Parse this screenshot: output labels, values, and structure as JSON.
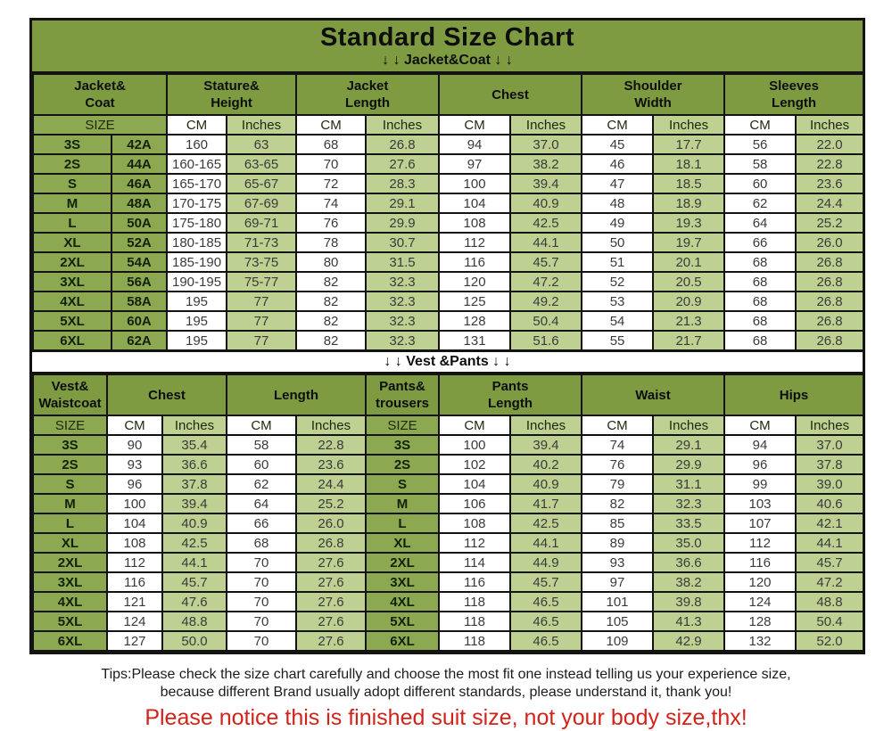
{
  "title": "Standard Size Chart",
  "colors": {
    "header_green": "#7e9b41",
    "size_cell_green": "#8ca851",
    "inches_cell_green": "#bfd192",
    "cm_cell_white": "#ffffff",
    "border_black": "#131313",
    "notice_red": "#d0241b"
  },
  "jacket": {
    "banner": "↓ ↓  Jacket&Coat ↓ ↓",
    "groups": [
      {
        "label": "Jacket&\nCoat",
        "span": 2
      },
      {
        "label": "Stature&\nHeight",
        "span": 2
      },
      {
        "label": "Jacket\nLength",
        "span": 2
      },
      {
        "label": "Chest",
        "span": 2
      },
      {
        "label": "Shoulder\nWidth",
        "span": 2
      },
      {
        "label": "Sleeves\nLength",
        "span": 2
      }
    ],
    "subheader": [
      {
        "label": "SIZE",
        "span": 2,
        "type": "size"
      },
      {
        "label": "CM",
        "span": 1,
        "type": "cm"
      },
      {
        "label": "Inches",
        "span": 1,
        "type": "in"
      },
      {
        "label": "CM",
        "span": 1,
        "type": "cm"
      },
      {
        "label": "Inches",
        "span": 1,
        "type": "in"
      },
      {
        "label": "CM",
        "span": 1,
        "type": "cm"
      },
      {
        "label": "Inches",
        "span": 1,
        "type": "in"
      },
      {
        "label": "CM",
        "span": 1,
        "type": "cm"
      },
      {
        "label": "Inches",
        "span": 1,
        "type": "in"
      },
      {
        "label": "CM",
        "span": 1,
        "type": "cm"
      },
      {
        "label": "Inches",
        "span": 1,
        "type": "in"
      }
    ],
    "col_types": [
      "size",
      "size",
      "cm",
      "in",
      "cm",
      "in",
      "cm",
      "in",
      "cm",
      "in",
      "cm",
      "in"
    ],
    "rows": [
      [
        "3S",
        "42A",
        "160",
        "63",
        "68",
        "26.8",
        "94",
        "37.0",
        "45",
        "17.7",
        "56",
        "22.0"
      ],
      [
        "2S",
        "44A",
        "160-165",
        "63-65",
        "70",
        "27.6",
        "97",
        "38.2",
        "46",
        "18.1",
        "58",
        "22.8"
      ],
      [
        "S",
        "46A",
        "165-170",
        "65-67",
        "72",
        "28.3",
        "100",
        "39.4",
        "47",
        "18.5",
        "60",
        "23.6"
      ],
      [
        "M",
        "48A",
        "170-175",
        "67-69",
        "74",
        "29.1",
        "104",
        "40.9",
        "48",
        "18.9",
        "62",
        "24.4"
      ],
      [
        "L",
        "50A",
        "175-180",
        "69-71",
        "76",
        "29.9",
        "108",
        "42.5",
        "49",
        "19.3",
        "64",
        "25.2"
      ],
      [
        "XL",
        "52A",
        "180-185",
        "71-73",
        "78",
        "30.7",
        "112",
        "44.1",
        "50",
        "19.7",
        "66",
        "26.0"
      ],
      [
        "2XL",
        "54A",
        "185-190",
        "73-75",
        "80",
        "31.5",
        "116",
        "45.7",
        "51",
        "20.1",
        "68",
        "26.8"
      ],
      [
        "3XL",
        "56A",
        "190-195",
        "75-77",
        "82",
        "32.3",
        "120",
        "47.2",
        "52",
        "20.5",
        "68",
        "26.8"
      ],
      [
        "4XL",
        "58A",
        "195",
        "77",
        "82",
        "32.3",
        "125",
        "49.2",
        "53",
        "20.9",
        "68",
        "26.8"
      ],
      [
        "5XL",
        "60A",
        "195",
        "77",
        "82",
        "32.3",
        "128",
        "50.4",
        "54",
        "21.3",
        "68",
        "26.8"
      ],
      [
        "6XL",
        "62A",
        "195",
        "77",
        "82",
        "32.3",
        "131",
        "51.6",
        "55",
        "21.7",
        "68",
        "26.8"
      ]
    ]
  },
  "vest": {
    "banner": "↓ ↓ Vest &Pants ↓ ↓",
    "groups": [
      {
        "label": "Vest&\nWaistcoat",
        "span": 1
      },
      {
        "label": "Chest",
        "span": 2
      },
      {
        "label": "Length",
        "span": 2
      },
      {
        "label": "Pants&\ntrousers",
        "span": 1
      },
      {
        "label": "Pants\nLength",
        "span": 2
      },
      {
        "label": "Waist",
        "span": 2
      },
      {
        "label": "Hips",
        "span": 2
      }
    ],
    "subheader": [
      {
        "label": "SIZE",
        "span": 1,
        "type": "size"
      },
      {
        "label": "CM",
        "span": 1,
        "type": "cm"
      },
      {
        "label": "Inches",
        "span": 1,
        "type": "in"
      },
      {
        "label": "CM",
        "span": 1,
        "type": "cm"
      },
      {
        "label": "Inches",
        "span": 1,
        "type": "in"
      },
      {
        "label": "SIZE",
        "span": 1,
        "type": "size"
      },
      {
        "label": "CM",
        "span": 1,
        "type": "cm"
      },
      {
        "label": "Inches",
        "span": 1,
        "type": "in"
      },
      {
        "label": "CM",
        "span": 1,
        "type": "cm"
      },
      {
        "label": "Inches",
        "span": 1,
        "type": "in"
      },
      {
        "label": "CM",
        "span": 1,
        "type": "cm"
      },
      {
        "label": "Inches",
        "span": 1,
        "type": "in"
      }
    ],
    "col_types": [
      "size",
      "cm",
      "in",
      "cm",
      "in",
      "size",
      "cm",
      "in",
      "cm",
      "in",
      "cm",
      "in"
    ],
    "rows": [
      [
        "3S",
        "90",
        "35.4",
        "58",
        "22.8",
        "3S",
        "100",
        "39.4",
        "74",
        "29.1",
        "94",
        "37.0"
      ],
      [
        "2S",
        "93",
        "36.6",
        "60",
        "23.6",
        "2S",
        "102",
        "40.2",
        "76",
        "29.9",
        "96",
        "37.8"
      ],
      [
        "S",
        "96",
        "37.8",
        "62",
        "24.4",
        "S",
        "104",
        "40.9",
        "79",
        "31.1",
        "99",
        "39.0"
      ],
      [
        "M",
        "100",
        "39.4",
        "64",
        "25.2",
        "M",
        "106",
        "41.7",
        "82",
        "32.3",
        "103",
        "40.6"
      ],
      [
        "L",
        "104",
        "40.9",
        "66",
        "26.0",
        "L",
        "108",
        "42.5",
        "85",
        "33.5",
        "107",
        "42.1"
      ],
      [
        "XL",
        "108",
        "42.5",
        "68",
        "26.8",
        "XL",
        "112",
        "44.1",
        "89",
        "35.0",
        "112",
        "44.1"
      ],
      [
        "2XL",
        "112",
        "44.1",
        "70",
        "27.6",
        "2XL",
        "114",
        "44.9",
        "93",
        "36.6",
        "116",
        "45.7"
      ],
      [
        "3XL",
        "116",
        "45.7",
        "70",
        "27.6",
        "3XL",
        "116",
        "45.7",
        "97",
        "38.2",
        "120",
        "47.2"
      ],
      [
        "4XL",
        "121",
        "47.6",
        "70",
        "27.6",
        "4XL",
        "118",
        "46.5",
        "101",
        "39.8",
        "124",
        "48.8"
      ],
      [
        "5XL",
        "124",
        "48.8",
        "70",
        "27.6",
        "5XL",
        "118",
        "46.5",
        "105",
        "41.3",
        "128",
        "50.4"
      ],
      [
        "6XL",
        "127",
        "50.0",
        "70",
        "27.6",
        "6XL",
        "118",
        "46.5",
        "109",
        "42.9",
        "132",
        "52.0"
      ]
    ]
  },
  "tips": {
    "line1": "Tips:Please check the size chart carefully and choose the most fit one instead telling us your experience size,",
    "line2": "because different Brand usually adopt different standards, please understand it, thank you!",
    "notice": "Please notice this is finished suit size, not your body size,thx!"
  }
}
